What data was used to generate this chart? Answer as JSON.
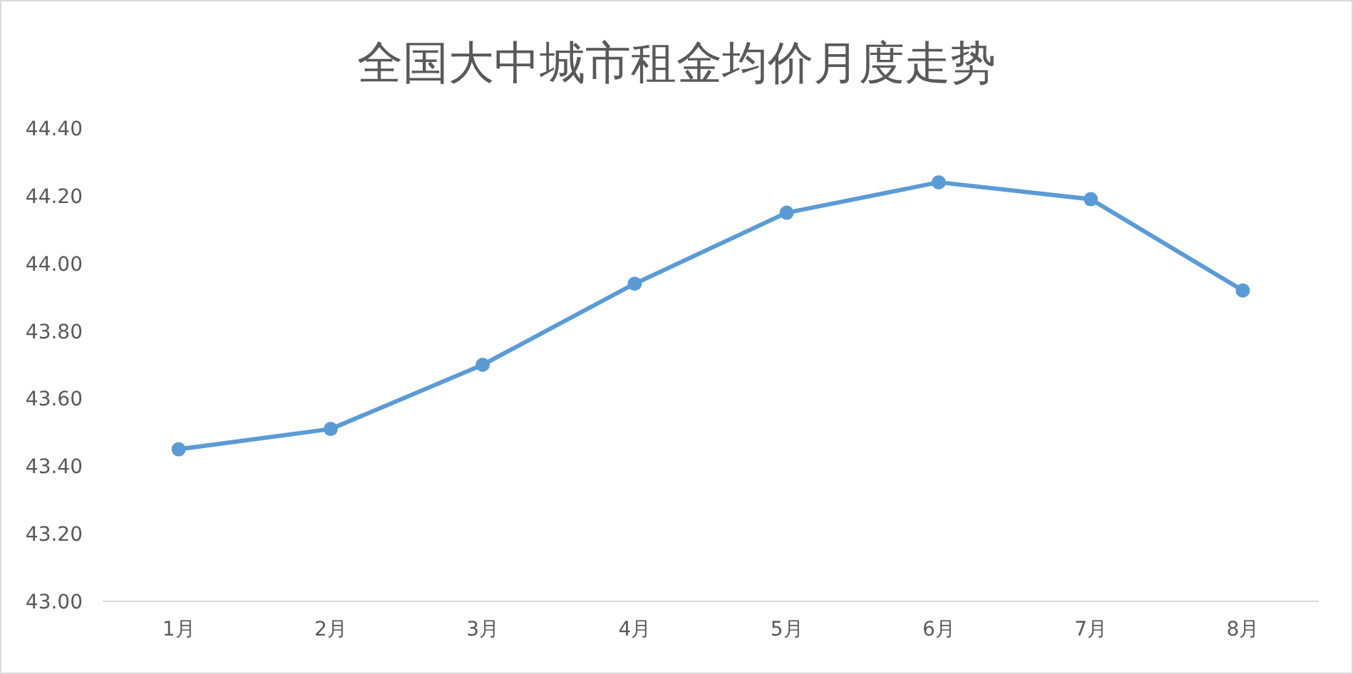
{
  "chart_data": {
    "type": "line",
    "title": "全国大中城市租金均价月度走势",
    "categories": [
      "1月",
      "2月",
      "3月",
      "4月",
      "5月",
      "6月",
      "7月",
      "8月"
    ],
    "series": [
      {
        "color": "#5b9bd5",
        "values": [
          43.45,
          43.51,
          43.7,
          43.94,
          44.15,
          44.24,
          44.19,
          43.92
        ]
      }
    ],
    "ylim": [
      43.0,
      44.4
    ],
    "yticks": [
      {
        "value": 43.0,
        "label": "43.00"
      },
      {
        "value": 43.2,
        "label": "43.20"
      },
      {
        "value": 43.4,
        "label": "43.40"
      },
      {
        "value": 43.6,
        "label": "43.60"
      },
      {
        "value": 43.8,
        "label": "43.80"
      },
      {
        "value": 44.0,
        "label": "44.00"
      },
      {
        "value": 44.2,
        "label": "44.20"
      },
      {
        "value": 44.4,
        "label": "44.40"
      }
    ],
    "marker": "circle",
    "line_style": "solid"
  }
}
